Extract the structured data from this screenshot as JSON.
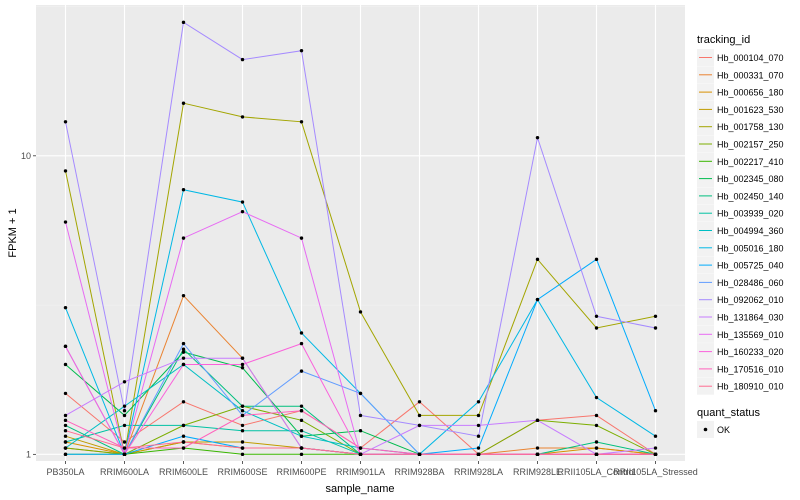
{
  "chart_data": {
    "type": "line",
    "xlabel": "sample_name",
    "ylabel": "FPKM + 1",
    "log_y": true,
    "ylim": [
      0.95,
      32
    ],
    "yticks": [
      {
        "value": 1,
        "label": "1"
      },
      {
        "value": 10,
        "label": "10"
      }
    ],
    "grid": true,
    "legend_position": "right",
    "categories": [
      "PB350LA",
      "RRIM600LA",
      "RRIM600LE",
      "RRIM600SE",
      "RRIM600PE",
      "RRIM901LA",
      "RRIM928BA",
      "RRIM928LA",
      "RRIM928LE",
      "RRII105LA_Control",
      "RRII105LA_Stressed"
    ],
    "legend_title": "tracking_id",
    "series": [
      {
        "name": "Hb_000104_070",
        "color": "#F8766D",
        "values": [
          1.6,
          1.1,
          1.5,
          1.25,
          1.4,
          1.05,
          1.5,
          1.0,
          1.3,
          1.35,
          1.0
        ]
      },
      {
        "name": "Hb_000331_070",
        "color": "#EA8331",
        "values": [
          1.05,
          1.0,
          3.4,
          2.1,
          1.05,
          1.0,
          1.0,
          1.0,
          1.05,
          1.05,
          1.0
        ]
      },
      {
        "name": "Hb_000656_180",
        "color": "#D89000",
        "values": [
          1.1,
          1.0,
          1.1,
          1.05,
          1.05,
          1.0,
          1.0,
          1.0,
          1.0,
          1.05,
          1.0
        ]
      },
      {
        "name": "Hb_001623_530",
        "color": "#C09B00",
        "values": [
          1.15,
          1.0,
          1.1,
          1.1,
          1.05,
          1.0,
          1.0,
          1.0,
          1.0,
          1.0,
          1.0
        ]
      },
      {
        "name": "Hb_001758_130",
        "color": "#A3A500",
        "values": [
          8.9,
          1.0,
          15.0,
          13.5,
          13.0,
          3.0,
          1.35,
          1.35,
          4.5,
          2.65,
          2.9
        ]
      },
      {
        "name": "Hb_002157_250",
        "color": "#7CAE00",
        "values": [
          1.05,
          1.0,
          1.25,
          1.45,
          1.3,
          1.0,
          1.0,
          1.0,
          1.3,
          1.25,
          1.0
        ]
      },
      {
        "name": "Hb_002217_410",
        "color": "#39B600",
        "values": [
          1.0,
          1.0,
          1.05,
          1.0,
          1.0,
          1.0,
          1.0,
          1.0,
          1.0,
          1.0,
          1.0
        ]
      },
      {
        "name": "Hb_002345_080",
        "color": "#00BB4E",
        "values": [
          2.0,
          1.35,
          2.2,
          1.95,
          1.15,
          1.2,
          1.0,
          1.0,
          1.0,
          1.0,
          1.0
        ]
      },
      {
        "name": "Hb_002450_140",
        "color": "#00BF7D",
        "values": [
          1.25,
          1.0,
          2.25,
          1.45,
          1.45,
          1.0,
          1.0,
          1.0,
          1.0,
          1.1,
          1.0
        ]
      },
      {
        "name": "Hb_003939_020",
        "color": "#00C1A3",
        "values": [
          1.1,
          1.25,
          1.25,
          1.2,
          1.2,
          1.0,
          1.0,
          1.0,
          1.0,
          1.0,
          1.0
        ]
      },
      {
        "name": "Hb_004994_360",
        "color": "#00BFC4",
        "values": [
          1.05,
          1.45,
          2.0,
          1.4,
          1.15,
          1.05,
          1.0,
          1.0,
          1.0,
          1.0,
          1.0
        ]
      },
      {
        "name": "Hb_005016_180",
        "color": "#00B8E5",
        "values": [
          3.1,
          1.0,
          7.7,
          7.0,
          2.55,
          1.6,
          1.0,
          1.5,
          3.3,
          1.55,
          1.15
        ]
      },
      {
        "name": "Hb_005725_040",
        "color": "#00ABFD",
        "values": [
          1.0,
          1.0,
          1.15,
          1.05,
          1.05,
          1.0,
          1.0,
          1.05,
          3.3,
          4.5,
          1.4
        ]
      },
      {
        "name": "Hb_028486_060",
        "color": "#619CFF",
        "values": [
          2.3,
          1.0,
          2.35,
          1.35,
          1.9,
          1.6,
          1.0,
          1.0,
          1.0,
          1.0,
          1.0
        ]
      },
      {
        "name": "Hb_092062_010",
        "color": "#A58AFF",
        "values": [
          13.0,
          1.4,
          28.0,
          21.0,
          22.5,
          1.35,
          1.25,
          1.15,
          11.5,
          2.9,
          2.65
        ]
      },
      {
        "name": "Hb_131864_030",
        "color": "#C77CFF",
        "values": [
          1.35,
          1.75,
          2.1,
          2.1,
          1.05,
          1.0,
          1.25,
          1.25,
          1.3,
          1.0,
          1.05
        ]
      },
      {
        "name": "Hb_135569_010",
        "color": "#E76BF3",
        "values": [
          6.0,
          1.0,
          5.3,
          6.5,
          5.3,
          1.0,
          1.0,
          1.0,
          1.0,
          1.0,
          1.0
        ]
      },
      {
        "name": "Hb_160233_020",
        "color": "#FA62DB",
        "values": [
          2.3,
          1.0,
          2.0,
          2.0,
          2.35,
          1.0,
          1.0,
          1.0,
          1.0,
          1.0,
          1.0
        ]
      },
      {
        "name": "Hb_170516_010",
        "color": "#FF62BC",
        "values": [
          1.3,
          1.05,
          1.05,
          1.35,
          1.4,
          1.05,
          1.0,
          1.0,
          1.0,
          1.0,
          1.0
        ]
      },
      {
        "name": "Hb_180910_010",
        "color": "#FF6C91",
        "values": [
          1.2,
          1.05,
          1.1,
          1.05,
          1.05,
          1.0,
          1.0,
          1.0,
          1.0,
          1.0,
          1.0
        ]
      }
    ],
    "quant_status": {
      "title": "quant_status",
      "items": [
        {
          "label": "OK",
          "color": "#000000"
        }
      ]
    },
    "style": {
      "panel_bg": "#EBEBEB",
      "grid_major": "#FFFFFF",
      "grid_minor": "#F2F2F2",
      "point_color": "#000000"
    }
  }
}
